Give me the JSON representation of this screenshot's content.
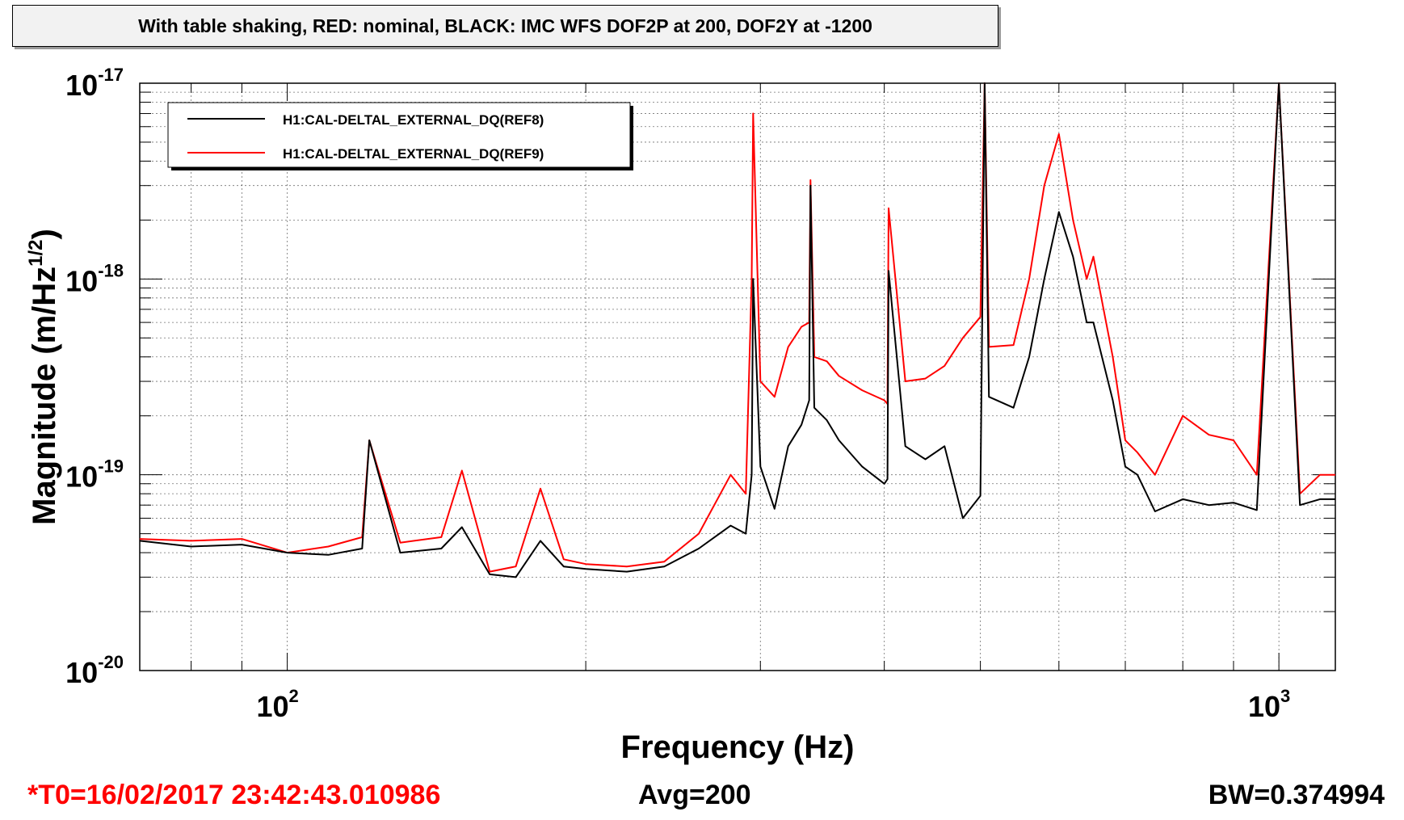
{
  "title": "With table shaking, RED: nominal, BLACK: IMC WFS DOF2P at 200, DOF2Y at -1200",
  "footer": {
    "t0": "*T0=16/02/2017 23:42:43.010986",
    "avg": "Avg=200",
    "bw": "BW=0.374994"
  },
  "colors": {
    "ref8": "#000000",
    "ref9": "#ff0000",
    "t0_text": "#ff0000"
  },
  "chart_data": {
    "type": "line",
    "xlabel": "Frequency (Hz)",
    "ylabel": "Magnitude (m/Hz^1/2)",
    "x_scale": "log",
    "y_scale": "log",
    "xlim": [
      71,
      1140
    ],
    "ylim": [
      1e-20,
      1e-17
    ],
    "grid": true,
    "legend_position": "top-left",
    "x_ticks": [
      {
        "value": 100,
        "base": "10",
        "exp": "2"
      },
      {
        "value": 1000,
        "base": "10",
        "exp": "3"
      }
    ],
    "y_ticks": [
      {
        "value": 1e-20,
        "base": "10",
        "exp": "-20"
      },
      {
        "value": 1e-19,
        "base": "10",
        "exp": "-19"
      },
      {
        "value": 1e-18,
        "base": "10",
        "exp": "-18"
      },
      {
        "value": 1e-17,
        "base": "10",
        "exp": "-17"
      }
    ],
    "series": [
      {
        "name": "H1:CAL-DELTAL_EXTERNAL_DQ(REF8)",
        "color": "#000000",
        "x": [
          71,
          80,
          90,
          100,
          110,
          119,
          121,
          130,
          143,
          150,
          160,
          170,
          180,
          190,
          200,
          220,
          240,
          260,
          280,
          290,
          294,
          295,
          300,
          310,
          320,
          330,
          336,
          337,
          340,
          350,
          360,
          380,
          400,
          403,
          404,
          420,
          440,
          460,
          480,
          500,
          505,
          510,
          540,
          560,
          580,
          600,
          620,
          640,
          650,
          680,
          700,
          720,
          750,
          800,
          850,
          900,
          950,
          1000,
          1050,
          1100,
          1140
        ],
        "y": [
          4.6e-20,
          4.3e-20,
          4.4e-20,
          4e-20,
          3.9e-20,
          4.2e-20,
          1.5e-19,
          4e-20,
          4.2e-20,
          5.4e-20,
          3.1e-20,
          3e-20,
          4.6e-20,
          3.4e-20,
          3.3e-20,
          3.2e-20,
          3.4e-20,
          4.2e-20,
          5.5e-20,
          5e-20,
          1e-19,
          1e-18,
          1.1e-19,
          6.7e-20,
          1.4e-19,
          1.8e-19,
          2.4e-19,
          3e-18,
          2.2e-19,
          1.9e-19,
          1.5e-19,
          1.1e-19,
          9e-20,
          9.5e-20,
          1.1e-18,
          1.4e-19,
          1.2e-19,
          1.4e-19,
          6e-20,
          7.8e-20,
          1e-17,
          2.5e-19,
          2.2e-19,
          4e-19,
          1e-18,
          2.2e-18,
          1.3e-18,
          6e-19,
          6e-19,
          2.4e-19,
          1.1e-19,
          1e-19,
          6.5e-20,
          7.5e-20,
          7e-20,
          7.2e-20,
          6.6e-20,
          1e-17,
          7e-20,
          7.5e-20,
          7.5e-20
        ]
      },
      {
        "name": "H1:CAL-DELTAL_EXTERNAL_DQ(REF9)",
        "color": "#ff0000",
        "x": [
          71,
          80,
          90,
          100,
          110,
          119,
          121,
          130,
          143,
          150,
          160,
          170,
          180,
          190,
          200,
          220,
          240,
          260,
          280,
          290,
          294,
          295,
          300,
          310,
          320,
          330,
          336,
          337,
          340,
          350,
          360,
          380,
          400,
          403,
          404,
          420,
          440,
          460,
          480,
          500,
          505,
          510,
          540,
          560,
          580,
          600,
          620,
          640,
          650,
          680,
          700,
          720,
          750,
          800,
          850,
          900,
          950,
          1000,
          1050,
          1100,
          1140
        ],
        "y": [
          4.7e-20,
          4.6e-20,
          4.7e-20,
          4e-20,
          4.3e-20,
          4.8e-20,
          1.5e-19,
          4.5e-20,
          4.8e-20,
          1.05e-19,
          3.2e-20,
          3.4e-20,
          8.5e-20,
          3.7e-20,
          3.5e-20,
          3.4e-20,
          3.6e-20,
          5e-20,
          1e-19,
          8e-20,
          1e-18,
          7e-18,
          3e-19,
          2.5e-19,
          4.5e-19,
          5.7e-19,
          6e-19,
          3.2e-18,
          4e-19,
          3.8e-19,
          3.2e-19,
          2.7e-19,
          2.4e-19,
          2.3e-19,
          2.3e-18,
          3e-19,
          3.1e-19,
          3.6e-19,
          5e-19,
          6.4e-19,
          1e-17,
          4.5e-19,
          4.6e-19,
          1e-18,
          3e-18,
          5.5e-18,
          2e-18,
          1e-18,
          1.3e-18,
          4e-19,
          1.5e-19,
          1.3e-19,
          1e-19,
          2e-19,
          1.6e-19,
          1.5e-19,
          1e-19,
          1e-17,
          8e-20,
          1e-19,
          1e-19
        ]
      }
    ]
  }
}
